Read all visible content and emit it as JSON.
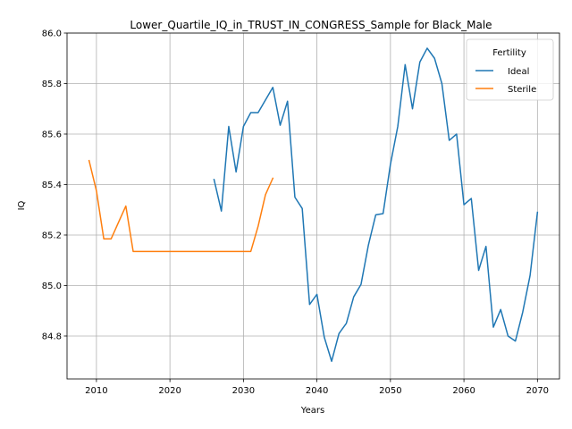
{
  "chart_data": {
    "type": "line",
    "title": "Lower_Quartile_IQ_in_TRUST_IN_CONGRESS_Sample for Black_Male",
    "xlabel": "Years",
    "ylabel": "IQ",
    "xlim": [
      2006,
      2073
    ],
    "ylim": [
      84.63,
      86.0
    ],
    "xticks": [
      2010,
      2020,
      2030,
      2040,
      2050,
      2060,
      2070
    ],
    "yticks": [
      84.8,
      85.0,
      85.2,
      85.4,
      85.6,
      85.8,
      86.0
    ],
    "ytick_labels": [
      "84.8",
      "85.0",
      "85.2",
      "85.4",
      "85.6",
      "85.8",
      "86.0"
    ],
    "grid": true,
    "legend": {
      "title": "Fertility",
      "placement": "top-right"
    },
    "series": [
      {
        "name": "Ideal",
        "color": "#1f77b4",
        "x": [
          2026,
          2027,
          2028,
          2029,
          2030,
          2031,
          2032,
          2033,
          2034,
          2035,
          2036,
          2037,
          2038,
          2039,
          2040,
          2041,
          2042,
          2043,
          2044,
          2045,
          2046,
          2047,
          2048,
          2049,
          2050,
          2051,
          2052,
          2053,
          2054,
          2055,
          2056,
          2057,
          2058,
          2059,
          2060,
          2061,
          2062,
          2063,
          2064,
          2065,
          2066,
          2067,
          2068,
          2069,
          2070
        ],
        "y": [
          85.42,
          85.295,
          85.63,
          85.45,
          85.63,
          85.685,
          85.685,
          85.735,
          85.785,
          85.635,
          85.73,
          85.35,
          85.305,
          84.925,
          84.965,
          84.795,
          84.7,
          84.81,
          84.85,
          84.955,
          85.005,
          85.16,
          85.28,
          85.285,
          85.48,
          85.63,
          85.875,
          85.7,
          85.885,
          85.94,
          85.9,
          85.8,
          85.575,
          85.6,
          85.32,
          85.345,
          85.06,
          85.155,
          84.835,
          84.905,
          84.8,
          84.78,
          84.895,
          85.04,
          85.29
        ]
      },
      {
        "name": "Sterile",
        "color": "#ff7f0e",
        "x": [
          2009,
          2010,
          2011,
          2012,
          2013,
          2014,
          2015,
          2016,
          2017,
          2018,
          2019,
          2020,
          2021,
          2022,
          2023,
          2024,
          2025,
          2026,
          2027,
          2028,
          2029,
          2030,
          2031,
          2032,
          2033,
          2034
        ],
        "y": [
          85.495,
          85.375,
          85.185,
          85.185,
          85.25,
          85.315,
          85.135,
          85.135,
          85.135,
          85.135,
          85.135,
          85.135,
          85.135,
          85.135,
          85.135,
          85.135,
          85.135,
          85.135,
          85.135,
          85.135,
          85.135,
          85.135,
          85.135,
          85.235,
          85.36,
          85.425
        ]
      }
    ]
  }
}
